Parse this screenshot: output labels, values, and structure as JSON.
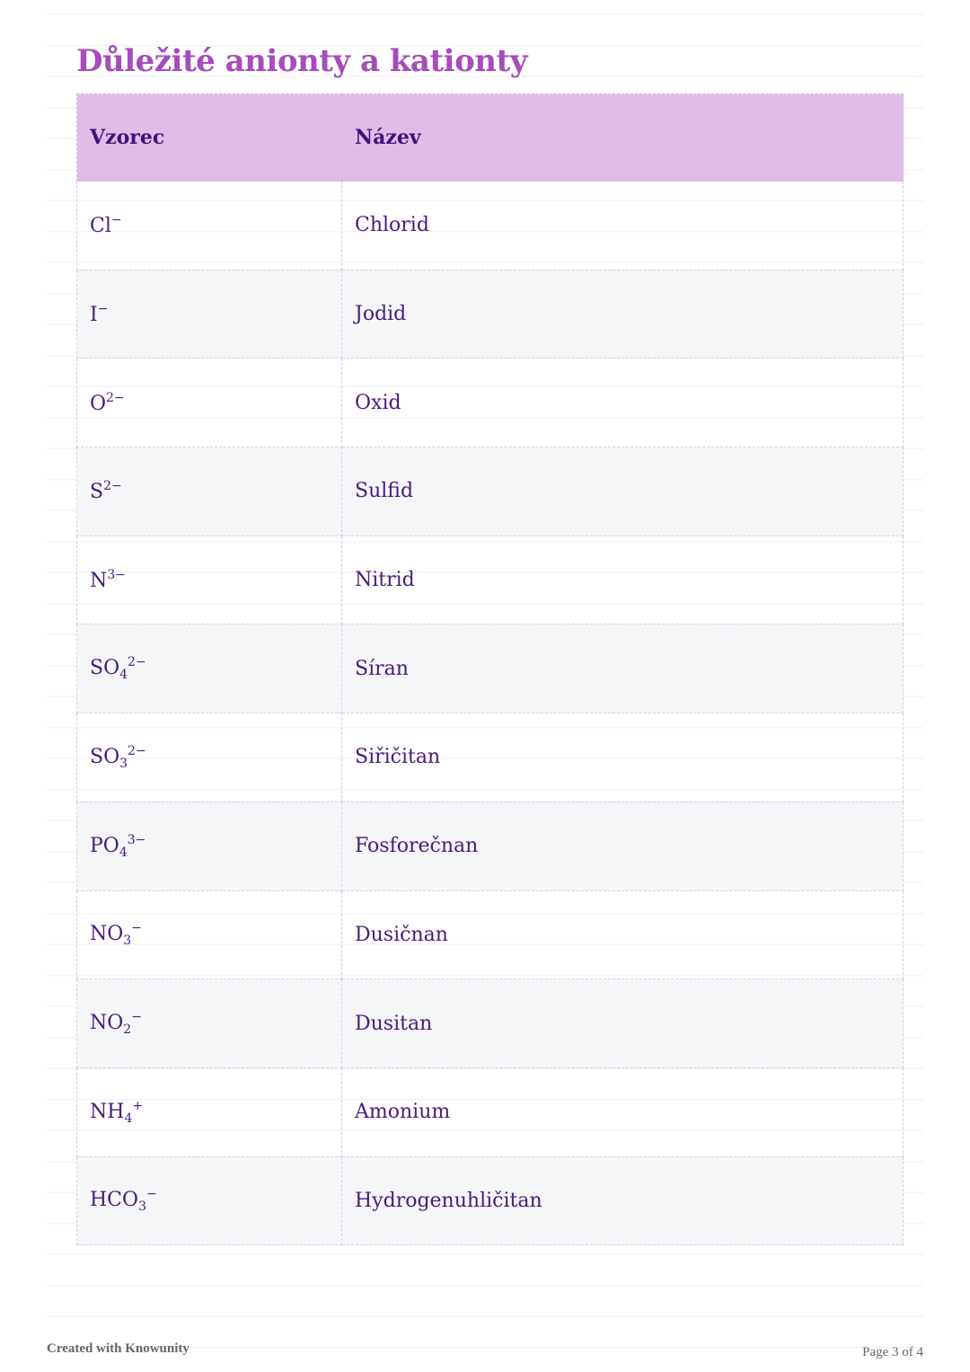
{
  "title": "Důležité anionty a kationty",
  "table": {
    "headers": [
      "Vzorec",
      "Název"
    ],
    "rows": [
      {
        "formula": {
          "base": "Cl",
          "sub": "",
          "sup": "−"
        },
        "name": "Chlorid"
      },
      {
        "formula": {
          "base": "I",
          "sub": "",
          "sup": "−"
        },
        "name": "Jodid"
      },
      {
        "formula": {
          "base": "O",
          "sub": "",
          "sup": "2−"
        },
        "name": "Oxid"
      },
      {
        "formula": {
          "base": "S",
          "sub": "",
          "sup": "2−"
        },
        "name": "Sulfid"
      },
      {
        "formula": {
          "base": "N",
          "sub": "",
          "sup": "3−"
        },
        "name": "Nitrid"
      },
      {
        "formula": {
          "base": "SO",
          "sub": "4",
          "sup": "2−"
        },
        "name": "Síran"
      },
      {
        "formula": {
          "base": "SO",
          "sub": "3",
          "sup": "2−"
        },
        "name": "Siřičitan"
      },
      {
        "formula": {
          "base": "PO",
          "sub": "4",
          "sup": "3−"
        },
        "name": "Fosforečnan"
      },
      {
        "formula": {
          "base": "NO",
          "sub": "3",
          "sup": "−"
        },
        "name": "Dusičnan"
      },
      {
        "formula": {
          "base": "NO",
          "sub": "2",
          "sup": "−"
        },
        "name": "Dusitan"
      },
      {
        "formula": {
          "base": "NH",
          "sub": "4",
          "sup": "+"
        },
        "name": "Amonium"
      },
      {
        "formula": {
          "base": "HCO",
          "sub": "3",
          "sup": "−"
        },
        "name": "Hydrogenuhličitan"
      }
    ]
  },
  "footer": {
    "created_with": "Created with Knowunity",
    "page": "Page 3 of 4"
  },
  "colors": {
    "title": "#a64dba",
    "header_bg": "#e0bde8",
    "text": "#4a1a7a"
  }
}
